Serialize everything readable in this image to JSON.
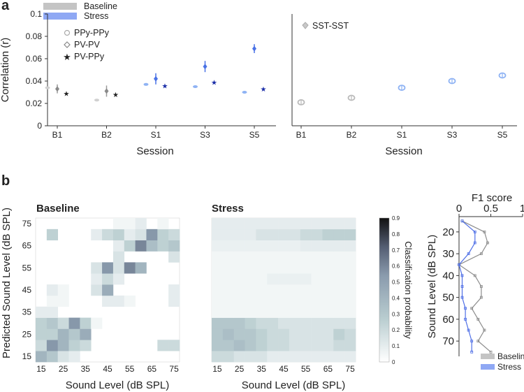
{
  "panel_labels": [
    "a",
    "b"
  ],
  "legend_top": {
    "baseline": "Baseline",
    "stress": "Stress"
  },
  "colors": {
    "baseline_bar": "#c4c4c4",
    "stress_bar": "#8fa8f4",
    "baseline_light": "#d0d0d0",
    "baseline_dark": "#8a8a8a",
    "baseline_black": "#222222",
    "stress_light": "#8fb3f4",
    "stress_mid": "#4a72e6",
    "stress_dark": "#1c2fa8",
    "f1_baseline": "#8c8c8c",
    "f1_stress": "#4f6fe6"
  },
  "chart_data": [
    {
      "type": "scatter",
      "id": "a-left",
      "ylabel": "Correlation (r)",
      "xlabel": "Session",
      "categories": [
        "B1",
        "B2",
        "S1",
        "S3",
        "S5"
      ],
      "ylim": [
        0,
        0.1
      ],
      "yticks": [
        "0",
        "0.02",
        "0.04",
        "0.06",
        "0.08",
        "0.1"
      ],
      "series": [
        {
          "name": "PPy-PPy",
          "marker": "circle",
          "values": [
            0.034,
            0.023,
            0.037,
            0.035,
            0.03
          ],
          "err": [
            0.001,
            0.001,
            0.001,
            0.001,
            0.001
          ]
        },
        {
          "name": "PV-PV",
          "marker": "diamond",
          "values": [
            0.033,
            0.031,
            0.042,
            0.053,
            0.069
          ],
          "err": [
            0.004,
            0.005,
            0.005,
            0.005,
            0.004
          ]
        },
        {
          "name": "PV-PPy",
          "marker": "star",
          "values": [
            0.029,
            0.028,
            0.036,
            0.039,
            0.033
          ],
          "err": [
            0.001,
            0.001,
            0.001,
            0.001,
            0.001
          ]
        }
      ]
    },
    {
      "type": "scatter",
      "id": "a-right",
      "xlabel": "Session",
      "categories": [
        "B1",
        "B2",
        "S1",
        "S3",
        "S5"
      ],
      "ylim": [
        0,
        0.1
      ],
      "series": [
        {
          "name": "SST-SST",
          "marker": "circle",
          "values": [
            0.021,
            0.025,
            0.034,
            0.04,
            0.045
          ],
          "err": [
            0.001,
            0.001,
            0.001,
            0.001,
            0.001
          ]
        }
      ]
    },
    {
      "type": "heatmap",
      "id": "b-baseline",
      "title": "Baseline",
      "xlabel": "Sound Level (dB SPL)",
      "ylabel": "Predicted Sound Level (dB SPL)",
      "levels": [
        15,
        20,
        25,
        30,
        35,
        40,
        45,
        50,
        55,
        60,
        65,
        70,
        75
      ],
      "xtick_labels": [
        "15",
        "25",
        "35",
        "45",
        "55",
        "65",
        "75"
      ],
      "ytick_labels": [
        "15",
        "25",
        "35",
        "45",
        "55",
        "65",
        "75"
      ],
      "matrix_rows_pred_15_to_75": [
        [
          0.4,
          0.3,
          0.15,
          0.1,
          0,
          0,
          0,
          0,
          0,
          0,
          0,
          0,
          0
        ],
        [
          0.2,
          0.55,
          0.4,
          0.25,
          0.2,
          0,
          0,
          0,
          0,
          0,
          0,
          0.2,
          0.2
        ],
        [
          0.25,
          0.25,
          0.4,
          0.3,
          0.45,
          0,
          0,
          0,
          0,
          0,
          0,
          0,
          0
        ],
        [
          0.25,
          0.3,
          0.2,
          0.55,
          0.25,
          0.05,
          0,
          0,
          0,
          0,
          0,
          0,
          0
        ],
        [
          0.1,
          0.1,
          0,
          0,
          0,
          0,
          0,
          0,
          0,
          0,
          0,
          0,
          0
        ],
        [
          0,
          0.05,
          0.05,
          0,
          0,
          0,
          0.1,
          0.1,
          0.05,
          0,
          0,
          0,
          0.1
        ],
        [
          0,
          0.1,
          0.05,
          0,
          0,
          0.15,
          0.45,
          0,
          0,
          0,
          0,
          0,
          0.1
        ],
        [
          0,
          0,
          0,
          0,
          0,
          0.1,
          0.2,
          0.1,
          0,
          0,
          0,
          0,
          0
        ],
        [
          0,
          0,
          0,
          0,
          0,
          0.15,
          0.55,
          0.15,
          0.6,
          0.4,
          0,
          0,
          0
        ],
        [
          0,
          0,
          0,
          0,
          0,
          0,
          0,
          0.15,
          0,
          0,
          0,
          0,
          0.15
        ],
        [
          0,
          0,
          0,
          0,
          0,
          0,
          0,
          0.1,
          0.25,
          0.6,
          0.35,
          0.25,
          0.3
        ],
        [
          0,
          0.25,
          0,
          0,
          0,
          0.1,
          0.2,
          0.25,
          0.1,
          0.15,
          0.55,
          0.25,
          0.2
        ],
        [
          0,
          0,
          0,
          0,
          0,
          0,
          0,
          0.05,
          0.05,
          0.1,
          0,
          0.05,
          0
        ]
      ]
    },
    {
      "type": "heatmap",
      "id": "b-stress",
      "title": "Stress",
      "xlabel": "Sound Level (dB SPL)",
      "levels": [
        15,
        20,
        25,
        30,
        35,
        40,
        45,
        50,
        55,
        60,
        65,
        70,
        75
      ],
      "xtick_labels": [
        "15",
        "25",
        "35",
        "45",
        "55",
        "65",
        "75"
      ],
      "matrix_rows_pred_15_to_75": [
        [
          0.2,
          0.2,
          0.15,
          0.15,
          0.15,
          0.1,
          0.1,
          0.1,
          0.1,
          0.1,
          0.1,
          0.1,
          0.1
        ],
        [
          0.3,
          0.3,
          0.35,
          0.3,
          0.25,
          0.2,
          0.2,
          0.15,
          0.15,
          0.15,
          0.15,
          0.2,
          0.2
        ],
        [
          0.3,
          0.35,
          0.3,
          0.3,
          0.25,
          0.2,
          0.2,
          0.15,
          0.15,
          0.15,
          0.15,
          0.25,
          0.2
        ],
        [
          0.3,
          0.3,
          0.3,
          0.25,
          0.2,
          0.2,
          0.15,
          0.15,
          0.15,
          0.15,
          0.15,
          0.15,
          0.15
        ],
        [
          0.05,
          0.05,
          0.05,
          0.05,
          0.05,
          0.05,
          0.05,
          0.05,
          0.05,
          0.05,
          0.05,
          0.05,
          0.05
        ],
        [
          0.05,
          0.05,
          0.05,
          0.05,
          0.05,
          0.05,
          0.05,
          0.05,
          0.05,
          0.05,
          0.05,
          0.05,
          0.05
        ],
        [
          0.05,
          0.05,
          0.05,
          0.05,
          0.05,
          0.05,
          0.05,
          0.05,
          0.05,
          0.05,
          0.05,
          0.05,
          0.05
        ],
        [
          0.05,
          0.05,
          0.05,
          0.05,
          0.05,
          0.08,
          0.08,
          0.08,
          0.08,
          0.05,
          0.05,
          0.05,
          0.05
        ],
        [
          0.05,
          0.05,
          0.05,
          0.05,
          0.05,
          0.05,
          0.05,
          0.05,
          0.05,
          0.05,
          0.05,
          0.05,
          0.05
        ],
        [
          0.05,
          0.05,
          0.05,
          0.05,
          0.05,
          0.05,
          0.05,
          0.05,
          0.05,
          0.05,
          0.05,
          0.05,
          0.05
        ],
        [
          0.08,
          0.08,
          0.08,
          0.08,
          0.08,
          0.08,
          0.08,
          0.08,
          0.1,
          0.1,
          0.1,
          0.1,
          0.1
        ],
        [
          0.1,
          0.1,
          0.1,
          0.1,
          0.15,
          0.15,
          0.15,
          0.15,
          0.2,
          0.2,
          0.25,
          0.25,
          0.25
        ],
        [
          0.1,
          0.1,
          0.1,
          0.1,
          0.1,
          0.1,
          0.1,
          0.1,
          0.1,
          0.1,
          0.1,
          0.1,
          0.1
        ]
      ]
    },
    {
      "type": "colorbar",
      "id": "b-colorbar",
      "label": "Classification probability",
      "range": [
        0,
        0.9
      ],
      "tick_labels": [
        "0",
        "0.1",
        "0.2",
        "0.3",
        "0.4",
        "0.5",
        "0.6",
        "0.7",
        "0.8",
        "0.9"
      ]
    },
    {
      "type": "line",
      "id": "b-f1",
      "title": "F1 score",
      "ylabel": "Sound Level (dB SPL)",
      "xlim": [
        0,
        1
      ],
      "xtick_labels": [
        "0",
        "0.5",
        "1"
      ],
      "ylim": [
        13,
        77
      ],
      "ytick_labels": [
        "20",
        "30",
        "40",
        "50",
        "60",
        "70"
      ],
      "levels": [
        15,
        20,
        25,
        30,
        35,
        40,
        45,
        50,
        55,
        60,
        65,
        70,
        75
      ],
      "series": [
        {
          "name": "Baseline",
          "values": [
            0.05,
            0.4,
            0.45,
            0.35,
            0.0,
            0.25,
            0.35,
            0.35,
            0.2,
            0.3,
            0.4,
            0.3,
            0.5
          ]
        },
        {
          "name": "Stress",
          "values": [
            0.05,
            0.25,
            0.25,
            0.15,
            0.0,
            0.05,
            0.05,
            0.05,
            0.1,
            0.1,
            0.15,
            0.2,
            0.2
          ]
        }
      ]
    }
  ]
}
